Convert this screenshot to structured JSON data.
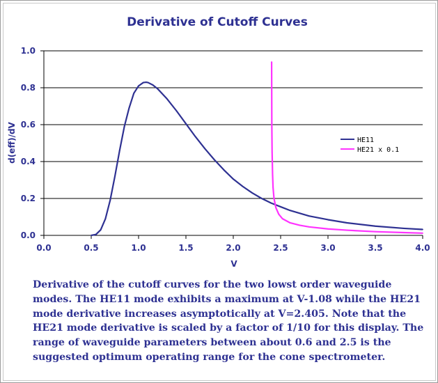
{
  "caption": "Derivative of the cutoff curves for the two lowst order waveguide modes. The HE11 mode exhibits a maximum at V-1.08 while the HE21 mode derivative increases asymptotically at V=2.405.  Note that the HE21 mode derivative is scaled by a factor of 1/10 for this display.  The range of waveguide parameters between about 0.6 and 2.5 is the suggested optimum operating range for the cone spectrometer.",
  "colors": {
    "title": "#2e3192",
    "he11": "#2e3192",
    "he21": "#ff33ff",
    "grid": "#000000"
  },
  "chart_data": {
    "type": "line",
    "title": "Derivative of Cutoff Curves",
    "xlabel": "V",
    "ylabel": "d(eff)/dV",
    "xlim": [
      0.0,
      4.0
    ],
    "ylim": [
      0.0,
      1.0
    ],
    "x_ticks": [
      "0.0",
      "0.5",
      "1.0",
      "1.5",
      "2.0",
      "2.5",
      "3.0",
      "3.5",
      "4.0"
    ],
    "y_ticks": [
      "0.0",
      "0.2",
      "0.4",
      "0.6",
      "0.8",
      "1.0"
    ],
    "grid": "horizontal",
    "legend_position": "right",
    "series": [
      {
        "name": "HE11",
        "color": "#2e3192",
        "x": [
          0.5,
          0.55,
          0.6,
          0.65,
          0.7,
          0.75,
          0.8,
          0.85,
          0.9,
          0.95,
          1.0,
          1.05,
          1.08,
          1.1,
          1.15,
          1.2,
          1.3,
          1.4,
          1.5,
          1.6,
          1.7,
          1.8,
          1.9,
          2.0,
          2.1,
          2.2,
          2.3,
          2.4,
          2.5,
          2.6,
          2.8,
          3.0,
          3.2,
          3.5,
          3.8,
          4.0
        ],
        "y": [
          0.0,
          0.005,
          0.03,
          0.09,
          0.19,
          0.32,
          0.46,
          0.59,
          0.69,
          0.77,
          0.81,
          0.828,
          0.83,
          0.828,
          0.815,
          0.795,
          0.74,
          0.675,
          0.605,
          0.535,
          0.47,
          0.41,
          0.355,
          0.305,
          0.265,
          0.23,
          0.2,
          0.175,
          0.155,
          0.135,
          0.105,
          0.085,
          0.068,
          0.05,
          0.038,
          0.032
        ]
      },
      {
        "name": "HE21 x 0.1",
        "color": "#ff33ff",
        "x": [
          2.405,
          2.407,
          2.41,
          2.415,
          2.42,
          2.43,
          2.45,
          2.48,
          2.52,
          2.6,
          2.7,
          2.8,
          3.0,
          3.2,
          3.5,
          3.8,
          4.0
        ],
        "y": [
          0.94,
          0.6,
          0.45,
          0.33,
          0.26,
          0.2,
          0.15,
          0.115,
          0.09,
          0.068,
          0.055,
          0.046,
          0.035,
          0.028,
          0.02,
          0.015,
          0.012
        ]
      }
    ]
  }
}
